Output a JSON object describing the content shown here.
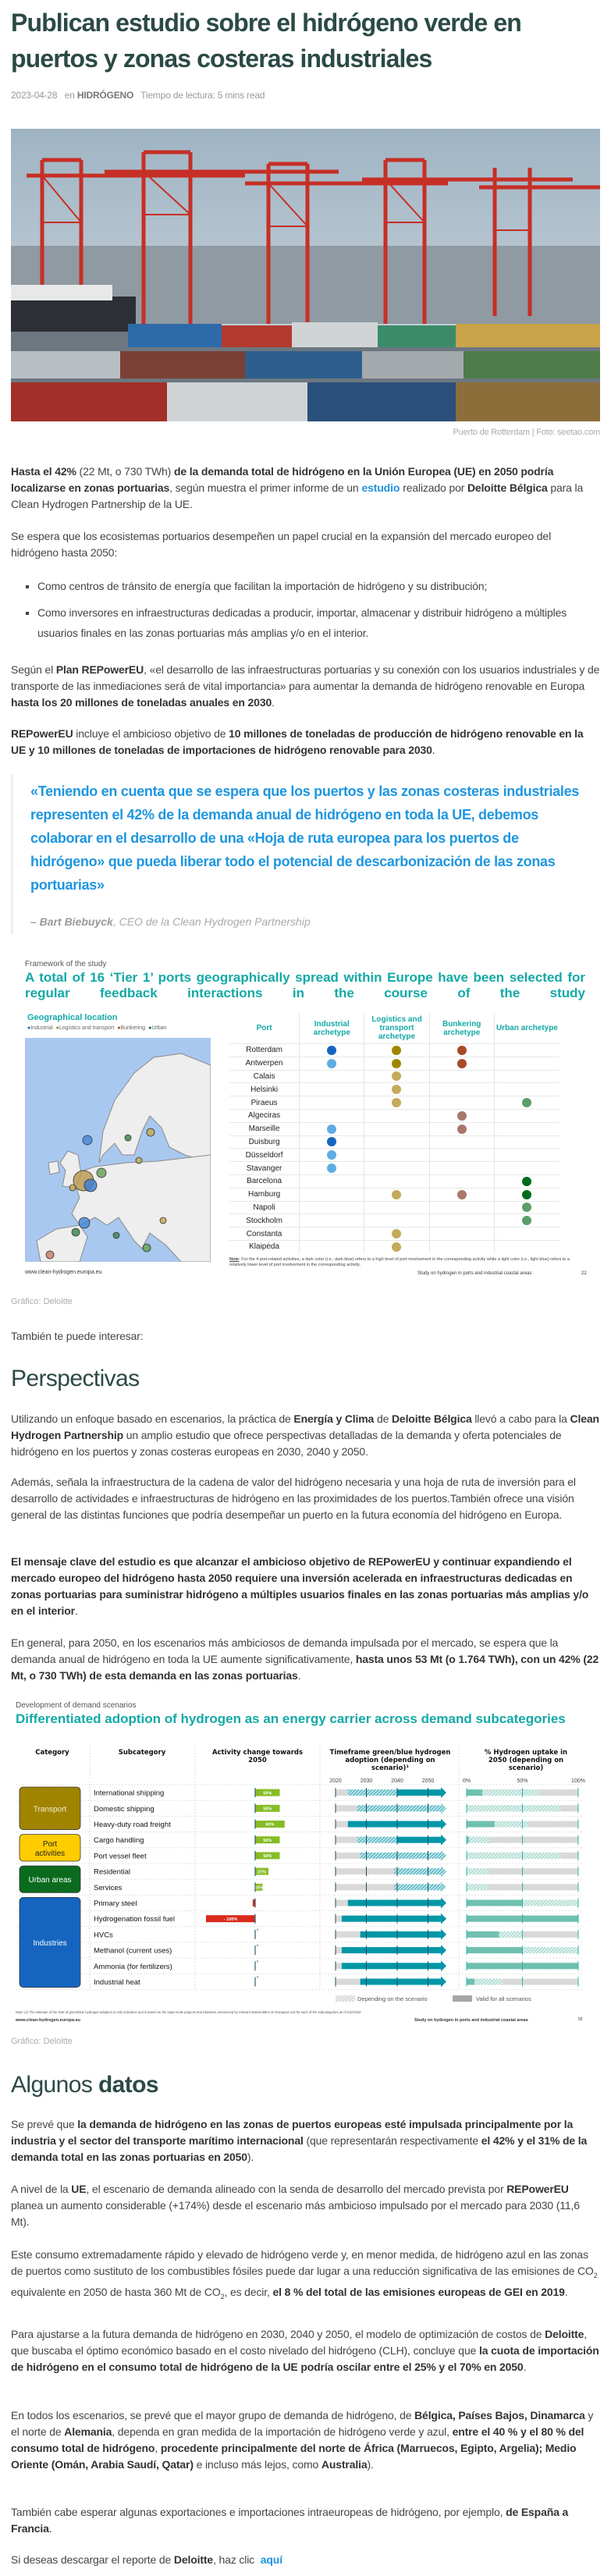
{
  "article": {
    "title": "Publican estudio sobre el hidrógeno verde en puertos y zonas costeras industriales",
    "date": "2023-04-28",
    "category_prefix": "en",
    "category": "HIDRÓGENO",
    "reading_time": "Tiempo de lectura: 5 mins read",
    "photo_caption": "Puerto de Rotterdam | Foto: seetao.com"
  },
  "intro": {
    "p1": [
      "",
      {
        "b": "Hasta el 42%"
      },
      " (22 Mt, o 730 TWh) ",
      {
        "b": "de la demanda total de hidrógeno en la Unión Europea (UE) en 2050 podría localizarse en zonas portuarias"
      },
      ", según muestra el primer informe de un",
      {
        "a": "estudio"
      },
      "realizado por ",
      {
        "b": "Deloitte Bélgica"
      },
      " para la Clean Hydrogen Partnership de la UE."
    ],
    "p2": [
      "Se espera que los ecosistemas portuarios desempeñen un papel crucial en la expansión del mercado europeo del hidrógeno hasta 2050:"
    ],
    "bullets": [
      "Como centros de tránsito de energía que facilitan la importación de hidrógeno y su distribución;",
      "Como inversores en infraestructuras dedicadas a producir, importar, almacenar y distribuir hidrógeno a múltiples usuarios finales en las zonas portuarias más amplias y/o en el interior."
    ],
    "p3": [
      "Según el ",
      {
        "b": "Plan REPowerEU"
      },
      ", «el desarrollo de las infraestructuras portuarias y su conexión con los usuarios industriales y de transporte de las inmediaciones será de vital importancia» para aumentar la demanda de hidrógeno renovable en Europa ",
      {
        "b": "hasta los 20 millones de toneladas anuales en 2030"
      },
      "."
    ],
    "p4": [
      "",
      {
        "b": "REPowerEU"
      },
      " incluye el ambicioso objetivo de ",
      {
        "b": "10 millones de toneladas de producción de hidrógeno renovable en la UE y 10 millones de toneladas de importaciones de hidrógeno renovable para 2030"
      },
      "."
    ]
  },
  "quote": {
    "text": " «Teniendo en cuenta que se espera que los puertos y las zonas costeras industriales representen el 42% de la demanda anual de hidrógeno en toda la UE, debemos colaborar en el desarrollo de una «Hoja de ruta europea para los puertos de hidrógeno» que pueda liberar todo el potencial de descarbonización de las zonas portuarias»",
    "author": "– Bart Biebuyck",
    "role": ", CEO de la Clean Hydrogen Partnership"
  },
  "figure1": {
    "subtitle": "Framework of the study",
    "title": "A total of 16 ‘Tier 1’ ports geographically spread within Europe have been selected for regular feedback interactions in the course of the study",
    "map_title": "Geographical location",
    "legend": [
      "Industrial",
      "Logistics and transport",
      "Bunkering",
      "Urban"
    ],
    "columns": [
      "Port",
      "Industrial archetype",
      "Logistics and transport archetype",
      "Bunkering archetype",
      "Urban archetype"
    ],
    "colors": {
      "industrial": {
        "high": "#1565c0",
        "low": "#5dade2"
      },
      "logistics": {
        "high": "#a08600",
        "low": "#c4aa5a"
      },
      "bunkering": {
        "high": "#a84a28",
        "low": "#a9776c"
      },
      "urban": {
        "high": "#006b1b",
        "low": "#5a9e6b"
      }
    },
    "ports": [
      {
        "name": "Rotterdam",
        "industrial": "high",
        "logistics": "high",
        "bunkering": "high",
        "urban": null
      },
      {
        "name": "Antwerpen",
        "industrial": "low",
        "logistics": "high",
        "bunkering": "high",
        "urban": null
      },
      {
        "name": "Calais",
        "industrial": null,
        "logistics": "low",
        "bunkering": null,
        "urban": null
      },
      {
        "name": "Helsinki",
        "industrial": null,
        "logistics": "low",
        "bunkering": null,
        "urban": null
      },
      {
        "name": "Piraeus",
        "industrial": null,
        "logistics": "low",
        "bunkering": null,
        "urban": "low"
      },
      {
        "name": "Algeciras",
        "industrial": null,
        "logistics": null,
        "bunkering": "low",
        "urban": null
      },
      {
        "name": "Marseille",
        "industrial": "low",
        "logistics": null,
        "bunkering": "low",
        "urban": null
      },
      {
        "name": "Duisburg",
        "industrial": "high",
        "logistics": null,
        "bunkering": null,
        "urban": null
      },
      {
        "name": "Düsseldorf",
        "industrial": "low",
        "logistics": null,
        "bunkering": null,
        "urban": null
      },
      {
        "name": "Stavanger",
        "industrial": "low",
        "logistics": null,
        "bunkering": null,
        "urban": null
      },
      {
        "name": "Barcelona",
        "industrial": null,
        "logistics": null,
        "bunkering": null,
        "urban": "high"
      },
      {
        "name": "Hamburg",
        "industrial": null,
        "logistics": "low",
        "bunkering": "low",
        "urban": "high"
      },
      {
        "name": "Napoli",
        "industrial": null,
        "logistics": null,
        "bunkering": null,
        "urban": "low"
      },
      {
        "name": "Stockholm",
        "industrial": null,
        "logistics": null,
        "bunkering": null,
        "urban": "low"
      },
      {
        "name": "Constanta",
        "industrial": null,
        "logistics": "low",
        "bunkering": null,
        "urban": null
      },
      {
        "name": "Klaipėda",
        "industrial": null,
        "logistics": "low",
        "bunkering": null,
        "urban": null
      }
    ],
    "note_label": "Note",
    "note": ": For the 4 port-related activities, a dark color (i.e., dark blue) refers to a high level of port involvement in the corresponding activity while a light color (i.e., light blue) refers to a relatively lower level of port involvement in the corresponding activity.",
    "url": "www.clean-hydrogen.europa.eu",
    "footer": "Study on hydrogen in ports and industrial coastal areas",
    "page": "22",
    "credit": "Gráfico: Deloitte"
  },
  "also_read": "También te puede interesar:",
  "perspectivas": {
    "heading": "Perspectivas",
    "p1": [
      "Utilizando un enfoque basado en escenarios, la práctica de ",
      {
        "b": "Energía y Clima"
      },
      " de ",
      {
        "b": "Deloitte Bélgica"
      },
      " llevó a cabo para la ",
      {
        "b": "Clean Hydrogen Partnership"
      },
      " un amplio estudio que ofrece perspectivas detalladas de la demanda y oferta potenciales de hidrógeno en los puertos y zonas costeras europeas en 2030, 2040 y 2050."
    ],
    "p2": [
      "Además, señala la infraestructura de la cadena de valor del hidrógeno necesaria y una hoja de ruta de inversión para el desarrollo de actividades e infraestructuras de hidrógeno en las proximidades de los puertos.También ofrece una visión general de las distintas funciones que podría desempeñar un puerto en la futura economía del hidrógeno en Europa."
    ],
    "p3": [
      "",
      {
        "b": "El mensaje clave del estudio es que alcanzar el ambicioso objetivo de REPowerEU y continuar expandiendo el mercado europeo del hidrógeno hasta 2050 requiere una inversión acelerada en infraestructuras dedicadas en zonas portuarias para suministrar hidrógeno a múltiples usuarios finales en las zonas portuarias más amplias y/o en el interior"
      },
      "."
    ],
    "p4": [
      "En general, para 2050, en los escenarios más ambiciosos de demanda impulsada por el mercado, se espera que la demanda anual de hidrógeno en toda la UE aumente significativamente, ",
      {
        "b": "hasta unos 53 Mt (o 1.764 TWh), con un 42% (22 Mt, o 730 TWh) de esta demanda en las zonas portuarias"
      },
      "."
    ]
  },
  "figure2": {
    "subtitle": "Development of demand scenarios",
    "title": "Differentiated adoption of hydrogen as an energy carrier across demand subcategories",
    "headers": [
      "Category",
      "Subcategory",
      "Activity change towards 2050",
      "Timeframe green/blue hydrogen adoption (depending on scenario)¹",
      "% Hydrogen uptake in 2050 (depending on scenario)"
    ],
    "year_ticks": [
      "2020",
      "2030",
      "2040",
      "2050"
    ],
    "uptake_ticks": [
      "0%",
      "50%",
      "100%"
    ],
    "categories": [
      {
        "name": "Transport",
        "rows": 3,
        "color": "#a08400",
        "text_color": "#f5eed0"
      },
      {
        "name": "Port activities",
        "rows": 2,
        "color": "#ffcc00",
        "text_color": "#222222"
      },
      {
        "name": "Urban areas",
        "rows": 2,
        "color": "#0a6b1f",
        "text_color": "#ffffff"
      },
      {
        "name": "Industries",
        "rows": 6,
        "color": "#1565c0",
        "text_color": "#ffffff"
      }
    ],
    "rows": [
      {
        "sub": "International shipping",
        "activity": 50,
        "activity_label": "50%",
        "hatched_from": 2024,
        "solid_from": 2040,
        "uptake_solid": 14,
        "uptake_hatched": 65
      },
      {
        "sub": "Domestic shipping",
        "activity": 50,
        "activity_label": "50%",
        "hatched_from": 2027,
        "solid_from": null,
        "uptake_solid": 0,
        "uptake_hatched": 85
      },
      {
        "sub": "Heavy-duty road freight",
        "activity": 60,
        "activity_label": "60%",
        "hatched_from": null,
        "solid_from": 2024,
        "uptake_solid": 25,
        "uptake_hatched": 55
      },
      {
        "sub": "Cargo handling",
        "activity": 50,
        "activity_label": "50%",
        "hatched_from": 2027,
        "solid_from": 2040,
        "uptake_solid": 2,
        "uptake_hatched": 20
      },
      {
        "sub": "Port vessel fleet",
        "activity": 50,
        "activity_label": "50%",
        "hatched_from": 2028,
        "solid_from": null,
        "uptake_solid": 0,
        "uptake_hatched": 85
      },
      {
        "sub": "Residential",
        "activity": 27,
        "activity_label": "27%",
        "hatched_from": 2039,
        "solid_from": null,
        "uptake_solid": 0,
        "uptake_hatched": 20
      },
      {
        "sub": "Services",
        "activity": 15,
        "activity_label": "15%",
        "hatched_from": 2039,
        "solid_from": null,
        "uptake_solid": 0,
        "uptake_hatched": 20
      },
      {
        "sub": "Primary steel",
        "activity": -5,
        "activity_label": "",
        "hatched_from": null,
        "solid_from": 2024,
        "uptake_solid": 50,
        "uptake_hatched": 100
      },
      {
        "sub": "Hydrogenation fossil fuel",
        "activity": -100,
        "activity_label": "- 100%",
        "hatched_from": null,
        "solid_from": 2022,
        "uptake_solid": 100,
        "uptake_hatched": 100
      },
      {
        "sub": "HVCs",
        "activity": 0,
        "activity_label": "0",
        "hatched_from": null,
        "solid_from": 2028,
        "uptake_solid": 29,
        "uptake_hatched": 50
      },
      {
        "sub": "Methanol (current uses)",
        "activity": 0,
        "activity_label": "0",
        "hatched_from": null,
        "solid_from": 2022,
        "uptake_solid": 50,
        "uptake_hatched": 100
      },
      {
        "sub": "Ammonia (for fertilizers)",
        "activity": 0,
        "activity_label": "0",
        "hatched_from": null,
        "solid_from": 2022,
        "uptake_solid": 100,
        "uptake_hatched": 100
      },
      {
        "sub": "Industrial heat",
        "activity": 0,
        "activity_label": "0",
        "hatched_from": null,
        "solid_from": 2028,
        "uptake_solid": 7,
        "uptake_hatched": 32
      }
    ],
    "legend": [
      "Depending on the scenario",
      "Valid for all scenarios"
    ],
    "colors": {
      "timeframe": "#0097a7",
      "uptake": "#6fc0b0",
      "positive": "#86bc25",
      "negative": "#d9291c",
      "base": "#d9d9d9"
    },
    "note": "Note: (1) The estimate of the start of green/blue hydrogen adoption is only indicative and is based on the large-scale projects and initiatives announced by relevant stakeholders on European soil for each of the subcategories as of mid-2022.",
    "url": "www.clean-hydrogen.europa.eu",
    "footer": "Study on hydrogen in ports and industrial coastal areas",
    "page": "55",
    "credit": "Gráfico: Deloitte"
  },
  "datos": {
    "heading_light": "Algunos ",
    "heading_bold": "datos",
    "p1": [
      "Se prevé que ",
      {
        "b": "la demanda de hidrógeno en las zonas de puertos europeas esté impulsada principalmente por la industria y el sector del transporte marítimo internacional"
      },
      " (que representarán respectivamente ",
      {
        "b": "el 42% y el 31% de la demanda total en las zonas portuarias en 2050"
      },
      ")."
    ],
    "p2": [
      "A nivel de la ",
      {
        "b": "UE"
      },
      ", el escenario de demanda alineado con la senda de desarrollo del mercado prevista por ",
      {
        "b": "REPowerEU"
      },
      " planea un aumento considerable (+174%) desde el escenario más ambicioso impulsado por el mercado para 2030 (11,6 Mt)."
    ],
    "p3": [
      "Este consumo extremadamente rápido y elevado de hidrógeno verde y, en menor medida, de hidrógeno azul en las zonas de puertos como sustituto de los combustibles fósiles puede dar lugar a una reducción significativa de las emisiones de CO",
      {
        "sub": "2"
      },
      " equivalente en 2050 de hasta 360 Mt de CO",
      {
        "sub": "2"
      },
      ", es decir, ",
      {
        "b": "el 8 % del total de las emisiones europeas de GEI en 2019"
      },
      "."
    ],
    "p4": [
      "Para ajustarse a la futura demanda de hidrógeno en 2030, 2040 y 2050, el modelo de optimización de costos de ",
      {
        "b": "Deloitte"
      },
      ", que buscaba el óptimo económico basado en el costo nivelado del hidrógeno (CLH), concluye que ",
      {
        "b": "la cuota de importación de hidrógeno en el consumo total de hidrógeno de la UE podría oscilar entre el 25% y el 70% en 2050"
      },
      "."
    ],
    "p5": [
      "En todos los escenarios, se prevé que el mayor grupo de demanda de hidrógeno, de ",
      {
        "b": "Bélgica, Países Bajos, Dinamarca"
      },
      " y el norte de ",
      {
        "b": "Alemania"
      },
      ", dependa en gran medida de la importación de hidrógeno verde y azul, ",
      {
        "b": "entre el 40 % y el 80 % del consumo total de hidrógeno"
      },
      ", ",
      {
        "b": "procedente principalmente del norte de África (Marruecos, Egipto, Argelia); Medio Oriente (Omán, Arabia Saudí, Qatar)"
      },
      " e incluso más lejos, como ",
      {
        "b": "Australia"
      },
      ")."
    ],
    "p6": [
      "También cabe esperar algunas exportaciones e importaciones intraeuropeas de hidrógeno, por ejemplo, ",
      {
        "b": "de España a Francia"
      },
      "."
    ],
    "p7": [
      "Si deseas descargar el reporte de ",
      {
        "b": "Deloitte"
      },
      ", haz clic ",
      {
        "a": "aquí"
      }
    ]
  }
}
